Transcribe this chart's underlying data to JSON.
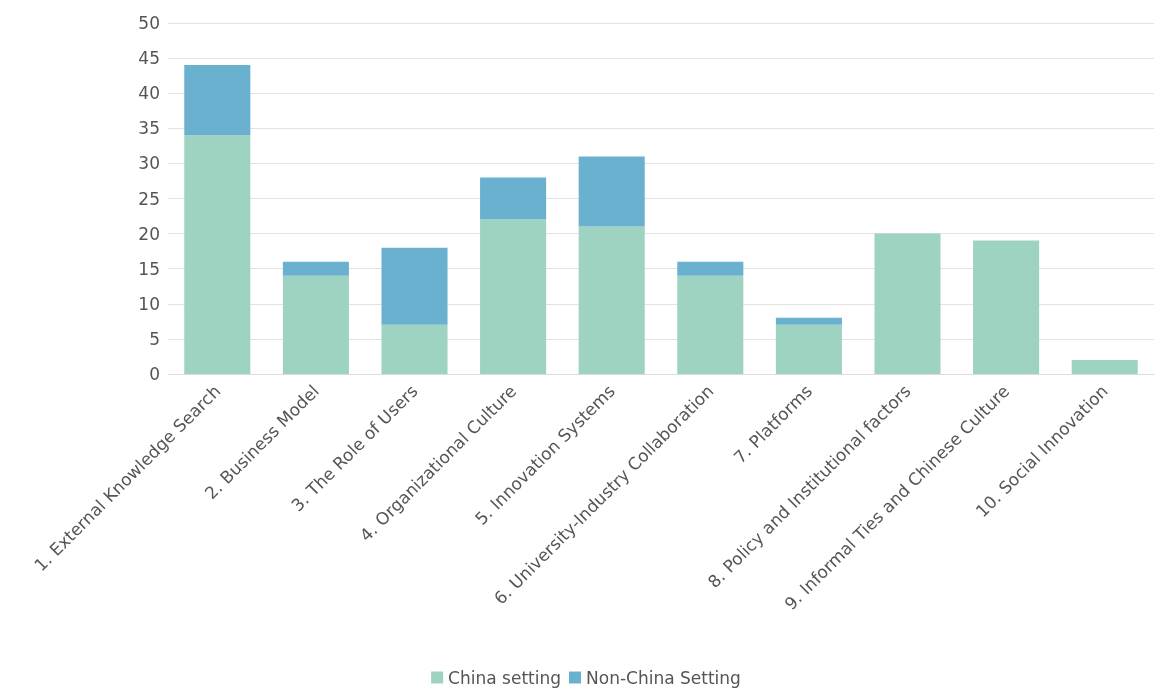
{
  "chart_data": {
    "type": "bar",
    "stacked": true,
    "categories": [
      "1. External Knowledge Search",
      "2. Business Model",
      "3. The Role of Users",
      "4. Organizational Culture",
      "5. Innovation Systems",
      "6. University-Industry Collaboration",
      "7. Platforms",
      "8. Policy and Institutional factors",
      "9. Informal Ties and Chinese Culture",
      "10. Social Innovation"
    ],
    "series": [
      {
        "name": "China setting",
        "color": "#9dd3c0",
        "values": [
          34,
          14,
          7,
          22,
          21,
          14,
          7,
          20,
          19,
          2
        ]
      },
      {
        "name": "Non-China Setting",
        "color": "#6ab1d0",
        "values": [
          10,
          2,
          11,
          6,
          10,
          2,
          1,
          0,
          0,
          0
        ]
      }
    ],
    "ylim": [
      0,
      50
    ],
    "yticks": [
      0,
      5,
      10,
      15,
      20,
      25,
      30,
      35,
      40,
      45,
      50
    ],
    "grid": "y",
    "legend": "bottom"
  }
}
